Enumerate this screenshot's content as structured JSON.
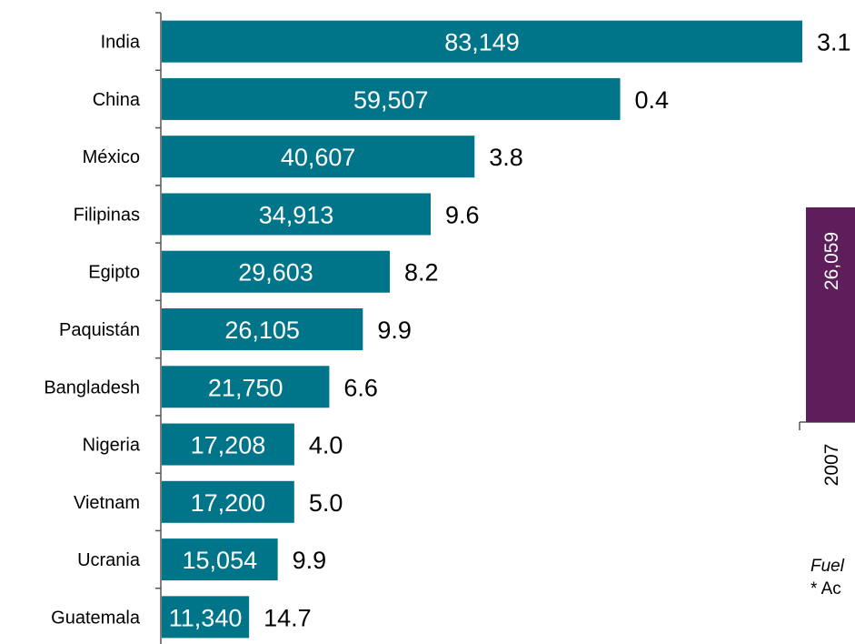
{
  "colors": {
    "main_bar": "#00758A",
    "side_bar": "#5E1D5B",
    "axis": "#555555"
  },
  "chart_data": [
    {
      "type": "bar",
      "orientation": "horizontal",
      "categories": [
        "India",
        "China",
        "México",
        "Filipinas",
        "Egipto",
        "Paquistán",
        "Bangladesh",
        "Nigeria",
        "Vietnam",
        "Ucrania",
        "Guatemala"
      ],
      "values": [
        83149,
        59507,
        40607,
        34913,
        29603,
        26105,
        21750,
        17208,
        17200,
        15054,
        11340
      ],
      "value_labels": [
        "83,149",
        "59,507",
        "40,607",
        "34,913",
        "29,603",
        "26,105",
        "21,750",
        "17,208",
        "17,200",
        "15,054",
        "11,340"
      ],
      "secondary_labels": [
        "3.1",
        "0.4",
        "3.8",
        "9.6",
        "8.2",
        "9.9",
        "6.6",
        "4.0",
        "5.0",
        "9.9",
        "14.7"
      ],
      "title": "",
      "xlabel": "",
      "ylabel": "",
      "xlim": [
        0,
        83149
      ],
      "grid": false
    },
    {
      "type": "bar",
      "orientation": "vertical",
      "categories": [
        "2007"
      ],
      "values": [
        26059
      ],
      "value_labels": [
        "26,059"
      ],
      "title": "",
      "xlabel": "",
      "ylabel": "",
      "grid": false
    }
  ],
  "footnotes": {
    "source_fragment": "Fuel",
    "note_fragment": "* Ac"
  }
}
